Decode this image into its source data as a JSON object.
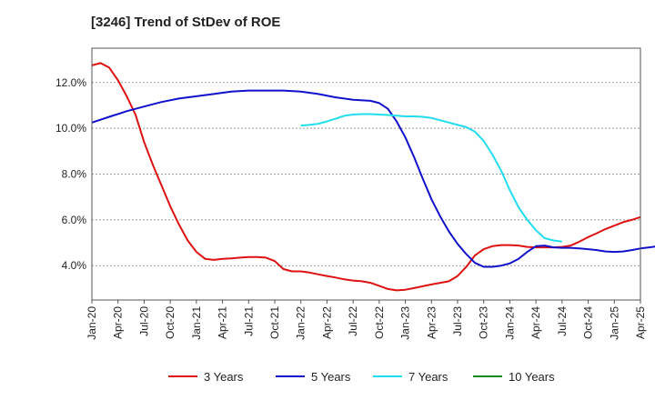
{
  "chart_data": {
    "type": "line",
    "title": "[3246]  Trend of StDev of ROE",
    "xlabel": "",
    "ylabel": "",
    "x_ticks": [
      "Jan-20",
      "Apr-20",
      "Jul-20",
      "Oct-20",
      "Jan-21",
      "Apr-21",
      "Jul-21",
      "Oct-21",
      "Jan-22",
      "Apr-22",
      "Jul-22",
      "Oct-22",
      "Jan-23",
      "Apr-23",
      "Jul-23",
      "Oct-23",
      "Jan-24",
      "Apr-24",
      "Jul-24",
      "Oct-24",
      "Jan-25",
      "Apr-25"
    ],
    "y_ticks": [
      "4.0%",
      "6.0%",
      "8.0%",
      "10.0%",
      "12.0%"
    ],
    "y_tick_values": [
      4,
      6,
      8,
      10,
      12
    ],
    "ylim": [
      2.5,
      13.5
    ],
    "grid": "horizontal dashed",
    "legend_position": "bottom",
    "series": [
      {
        "name": "3 Years",
        "color": "#dd1111",
        "points": [
          [
            0,
            12.75
          ],
          [
            1,
            12.85
          ],
          [
            2,
            12.65
          ],
          [
            3,
            12.1
          ],
          [
            4,
            11.4
          ],
          [
            5,
            10.6
          ],
          [
            6,
            9.4
          ],
          [
            7,
            8.4
          ],
          [
            8,
            7.5
          ],
          [
            9,
            6.6
          ],
          [
            10,
            5.8
          ],
          [
            11,
            5.1
          ],
          [
            12,
            4.6
          ],
          [
            13,
            4.3
          ],
          [
            14,
            4.25
          ],
          [
            15,
            4.3
          ],
          [
            16,
            4.32
          ],
          [
            17,
            4.35
          ],
          [
            18,
            4.38
          ],
          [
            19,
            4.38
          ],
          [
            20,
            4.35
          ],
          [
            21,
            4.2
          ],
          [
            22,
            3.85
          ],
          [
            23,
            3.75
          ],
          [
            24,
            3.75
          ],
          [
            25,
            3.7
          ],
          [
            26,
            3.62
          ],
          [
            27,
            3.55
          ],
          [
            28,
            3.48
          ],
          [
            29,
            3.4
          ],
          [
            30,
            3.35
          ],
          [
            31,
            3.32
          ],
          [
            32,
            3.25
          ],
          [
            33,
            3.12
          ],
          [
            34,
            2.98
          ],
          [
            35,
            2.92
          ],
          [
            36,
            2.95
          ],
          [
            37,
            3.02
          ],
          [
            38,
            3.1
          ],
          [
            39,
            3.18
          ],
          [
            40,
            3.25
          ],
          [
            41,
            3.32
          ],
          [
            42,
            3.55
          ],
          [
            43,
            3.95
          ],
          [
            44,
            4.45
          ],
          [
            45,
            4.72
          ],
          [
            46,
            4.85
          ],
          [
            47,
            4.9
          ],
          [
            48,
            4.9
          ],
          [
            49,
            4.88
          ],
          [
            50,
            4.82
          ],
          [
            51,
            4.8
          ],
          [
            52,
            4.8
          ],
          [
            53,
            4.8
          ],
          [
            54,
            4.82
          ],
          [
            55,
            4.88
          ],
          [
            56,
            5.05
          ],
          [
            57,
            5.25
          ],
          [
            58,
            5.42
          ],
          [
            59,
            5.6
          ],
          [
            60,
            5.75
          ],
          [
            61,
            5.9
          ],
          [
            62,
            6.0
          ],
          [
            63,
            6.12
          ]
        ]
      },
      {
        "name": "5 Years",
        "color": "#1111cc",
        "points": [
          [
            0,
            10.25
          ],
          [
            2,
            10.5
          ],
          [
            4,
            10.75
          ],
          [
            6,
            10.95
          ],
          [
            8,
            11.15
          ],
          [
            10,
            11.3
          ],
          [
            12,
            11.4
          ],
          [
            14,
            11.5
          ],
          [
            16,
            11.6
          ],
          [
            18,
            11.65
          ],
          [
            20,
            11.65
          ],
          [
            22,
            11.65
          ],
          [
            24,
            11.6
          ],
          [
            26,
            11.5
          ],
          [
            28,
            11.35
          ],
          [
            30,
            11.25
          ],
          [
            32,
            11.2
          ],
          [
            33,
            11.1
          ],
          [
            34,
            10.85
          ],
          [
            35,
            10.3
          ],
          [
            36,
            9.6
          ],
          [
            37,
            8.75
          ],
          [
            38,
            7.8
          ],
          [
            39,
            6.9
          ],
          [
            40,
            6.15
          ],
          [
            41,
            5.5
          ],
          [
            42,
            4.95
          ],
          [
            43,
            4.5
          ],
          [
            44,
            4.12
          ],
          [
            45,
            3.95
          ],
          [
            46,
            3.95
          ],
          [
            47,
            4.0
          ],
          [
            48,
            4.1
          ],
          [
            49,
            4.3
          ],
          [
            50,
            4.6
          ],
          [
            51,
            4.85
          ],
          [
            52,
            4.88
          ],
          [
            53,
            4.8
          ],
          [
            54,
            4.78
          ],
          [
            55,
            4.78
          ],
          [
            56,
            4.75
          ],
          [
            57,
            4.72
          ],
          [
            58,
            4.68
          ],
          [
            59,
            4.62
          ],
          [
            60,
            4.6
          ],
          [
            61,
            4.62
          ],
          [
            62,
            4.68
          ],
          [
            63,
            4.75
          ],
          [
            64,
            4.8
          ],
          [
            65,
            4.85
          ],
          [
            66,
            4.92
          ],
          [
            67,
            5.0
          ],
          [
            68,
            5.07
          ],
          [
            69,
            5.1
          ]
        ]
      },
      {
        "name": "7 Years",
        "color": "#22ddee",
        "points": [
          [
            24,
            10.12
          ],
          [
            25,
            10.15
          ],
          [
            26,
            10.2
          ],
          [
            27,
            10.3
          ],
          [
            28,
            10.42
          ],
          [
            29,
            10.55
          ],
          [
            30,
            10.6
          ],
          [
            31,
            10.62
          ],
          [
            32,
            10.62
          ],
          [
            33,
            10.6
          ],
          [
            34,
            10.58
          ],
          [
            35,
            10.55
          ],
          [
            36,
            10.52
          ],
          [
            37,
            10.52
          ],
          [
            38,
            10.5
          ],
          [
            39,
            10.45
          ],
          [
            40,
            10.35
          ],
          [
            41,
            10.25
          ],
          [
            42,
            10.15
          ],
          [
            43,
            10.05
          ],
          [
            44,
            9.85
          ],
          [
            45,
            9.45
          ],
          [
            46,
            8.85
          ],
          [
            47,
            8.15
          ],
          [
            48,
            7.3
          ],
          [
            49,
            6.55
          ],
          [
            50,
            6.0
          ],
          [
            51,
            5.55
          ],
          [
            52,
            5.2
          ],
          [
            53,
            5.1
          ],
          [
            54,
            5.05
          ]
        ]
      },
      {
        "name": "10 Years",
        "color": "#118811",
        "points": []
      }
    ]
  }
}
